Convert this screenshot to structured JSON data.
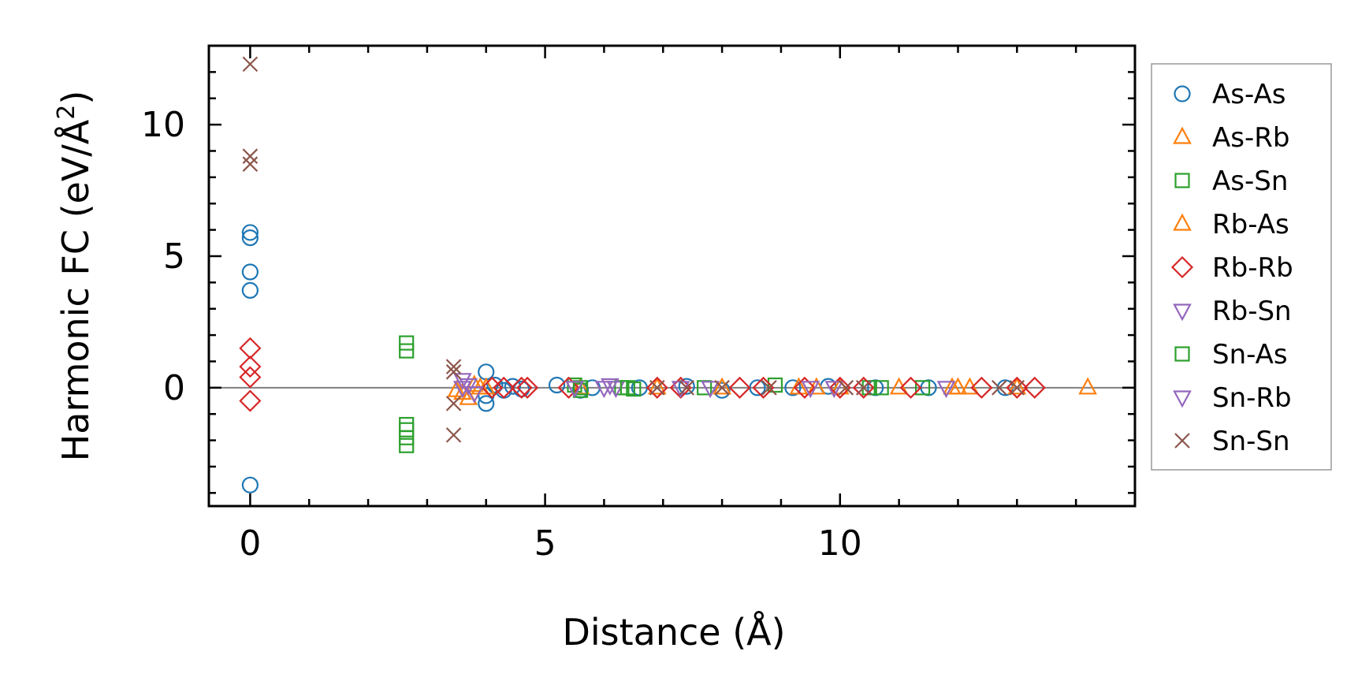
{
  "chart_data": {
    "type": "scatter",
    "xlabel": "Distance (Å)",
    "ylabel_main": "Harmonic FC (eV/Å",
    "ylabel_sup": "2",
    "ylabel_close": ")",
    "xlim": [
      -0.7,
      15.0
    ],
    "ylim": [
      -4.5,
      13.0
    ],
    "xticks": [
      0,
      5,
      10
    ],
    "yticks": [
      0,
      5,
      10
    ],
    "x_tick_labels": [
      "0",
      "5",
      "10"
    ],
    "y_tick_labels": [
      "0",
      "5",
      "10"
    ],
    "zero_line": true,
    "grid": false,
    "legend_position": "right-outside",
    "series": [
      {
        "name": "As-As",
        "marker": "circle",
        "color": "#1f77b4",
        "points": [
          [
            0,
            5.9
          ],
          [
            0,
            5.7
          ],
          [
            0,
            4.4
          ],
          [
            0,
            3.7
          ],
          [
            0,
            -3.7
          ],
          [
            4.0,
            0.6
          ],
          [
            4.0,
            -0.6
          ],
          [
            4.0,
            -0.3
          ],
          [
            4.15,
            0.1
          ],
          [
            4.3,
            -0.1
          ],
          [
            4.45,
            0.05
          ],
          [
            4.6,
            -0.05
          ],
          [
            5.2,
            0.1
          ],
          [
            5.6,
            -0.1
          ],
          [
            5.8,
            0.0
          ],
          [
            6.6,
            0.0
          ],
          [
            7.4,
            0.05
          ],
          [
            8.0,
            -0.1
          ],
          [
            8.6,
            0.0
          ],
          [
            9.2,
            0.0
          ],
          [
            9.8,
            0.05
          ],
          [
            10.6,
            0.0
          ],
          [
            11.5,
            0.0
          ],
          [
            12.8,
            0.0
          ]
        ]
      },
      {
        "name": "As-Rb",
        "marker": "triangle-up",
        "color": "#ff7f0e",
        "points": [
          [
            3.5,
            -0.1
          ],
          [
            3.7,
            -0.4
          ],
          [
            3.8,
            0.1
          ],
          [
            4.0,
            0.0
          ],
          [
            5.6,
            0.0
          ],
          [
            6.9,
            0.0
          ],
          [
            8.0,
            0.0
          ],
          [
            9.3,
            0.0
          ],
          [
            10.0,
            0.0
          ],
          [
            11.0,
            0.0
          ],
          [
            12.0,
            0.0
          ],
          [
            12.2,
            0.0
          ],
          [
            13.0,
            0.0
          ],
          [
            14.2,
            0.0
          ]
        ]
      },
      {
        "name": "As-Sn",
        "marker": "square",
        "color": "#2ca02c",
        "points": [
          [
            2.65,
            1.7
          ],
          [
            2.65,
            1.4
          ],
          [
            2.65,
            -1.4
          ],
          [
            2.65,
            -1.6
          ],
          [
            2.65,
            -1.9
          ],
          [
            2.65,
            -2.2
          ],
          [
            5.5,
            0.1
          ],
          [
            5.6,
            -0.1
          ],
          [
            6.3,
            0.0
          ],
          [
            6.5,
            -0.05
          ],
          [
            7.7,
            0.0
          ],
          [
            8.9,
            0.1
          ],
          [
            10.5,
            0.0
          ],
          [
            11.4,
            0.0
          ]
        ]
      },
      {
        "name": "Rb-As",
        "marker": "triangle-up",
        "color": "#ff7f0e",
        "points": [
          [
            3.6,
            -0.2
          ],
          [
            3.9,
            0.0
          ],
          [
            9.6,
            0.0
          ],
          [
            11.9,
            0.0
          ]
        ]
      },
      {
        "name": "Rb-Rb",
        "marker": "diamond",
        "color": "#d62728",
        "points": [
          [
            0,
            1.5
          ],
          [
            0,
            0.8
          ],
          [
            0,
            0.4
          ],
          [
            0,
            -0.5
          ],
          [
            4.1,
            0.0
          ],
          [
            4.3,
            0.0
          ],
          [
            4.6,
            0.0
          ],
          [
            4.7,
            0.0
          ],
          [
            5.4,
            0.0
          ],
          [
            6.9,
            0.0
          ],
          [
            7.3,
            0.0
          ],
          [
            8.3,
            0.0
          ],
          [
            8.7,
            0.0
          ],
          [
            9.4,
            0.0
          ],
          [
            10.0,
            0.0
          ],
          [
            10.4,
            0.0
          ],
          [
            11.2,
            0.0
          ],
          [
            12.4,
            0.0
          ],
          [
            13.0,
            0.0
          ],
          [
            13.3,
            0.0
          ]
        ]
      },
      {
        "name": "Rb-Sn",
        "marker": "triangle-down",
        "color": "#9467bd",
        "points": [
          [
            3.6,
            0.3
          ],
          [
            3.7,
            0.1
          ],
          [
            3.8,
            -0.2
          ],
          [
            6.1,
            0.1
          ],
          [
            6.2,
            0.0
          ],
          [
            7.3,
            0.0
          ],
          [
            9.5,
            0.0
          ],
          [
            11.8,
            0.0
          ]
        ]
      },
      {
        "name": "Sn-As",
        "marker": "square",
        "color": "#2ca02c",
        "points": [
          [
            5.6,
            0.0
          ],
          [
            6.4,
            0.0
          ],
          [
            10.7,
            0.0
          ]
        ]
      },
      {
        "name": "Sn-Rb",
        "marker": "triangle-down",
        "color": "#9467bd",
        "points": [
          [
            3.6,
            0.0
          ],
          [
            5.5,
            0.0
          ],
          [
            6.0,
            0.0
          ],
          [
            7.8,
            0.0
          ],
          [
            9.9,
            0.0
          ]
        ]
      },
      {
        "name": "Sn-Sn",
        "marker": "x",
        "color": "#8c564b",
        "points": [
          [
            0,
            12.3
          ],
          [
            0,
            8.8
          ],
          [
            0,
            8.5
          ],
          [
            3.45,
            0.8
          ],
          [
            3.45,
            0.6
          ],
          [
            3.45,
            -0.6
          ],
          [
            3.45,
            -1.8
          ],
          [
            6.9,
            0.0
          ],
          [
            7.4,
            0.0
          ],
          [
            8.0,
            0.0
          ],
          [
            8.8,
            0.0
          ],
          [
            10.1,
            0.0
          ],
          [
            10.4,
            0.0
          ],
          [
            12.7,
            0.0
          ],
          [
            13.0,
            0.0
          ]
        ]
      }
    ]
  }
}
